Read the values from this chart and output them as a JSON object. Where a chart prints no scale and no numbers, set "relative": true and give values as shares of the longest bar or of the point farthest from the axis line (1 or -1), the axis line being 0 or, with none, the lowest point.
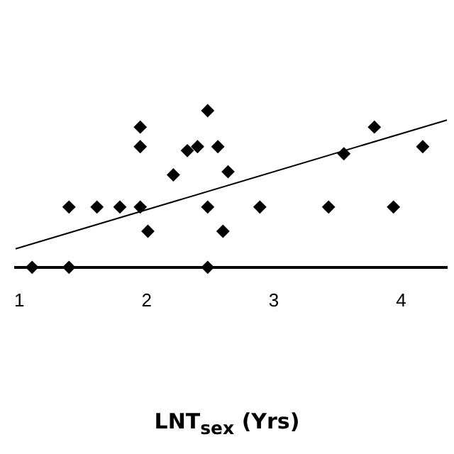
{
  "chart_data": {
    "type": "scatter",
    "xlabel": "LNT$_{sex}$ (Yrs)",
    "relative": true,
    "xlim": [
      0.97,
      4.36
    ],
    "xticks": [
      1,
      2,
      3,
      4
    ],
    "tick_labels": "x",
    "grid": false,
    "marker": "diamond",
    "series": [
      {
        "color": "#000000",
        "x": [
          1.1,
          1.39,
          2.48,
          1.39,
          1.61,
          1.79,
          1.95,
          1.95,
          1.95,
          2.01,
          2.21,
          2.32,
          2.4,
          2.48,
          2.48,
          2.56,
          2.64,
          2.6,
          2.89,
          3.43,
          3.55,
          3.79,
          3.94,
          4.17
        ],
        "values": [
          0,
          0,
          0,
          0.385,
          0.385,
          0.385,
          0.385,
          0.895,
          0.77,
          0.23,
          0.59,
          0.745,
          0.77,
          1,
          0.385,
          0.77,
          0.61,
          0.23,
          0.385,
          0.385,
          0.725,
          0.895,
          0.385,
          0.77
        ]
      },
      {
        "type": "line",
        "marker": "none",
        "color": "#000000",
        "x": [
          0.97,
          4.36
        ],
        "values": [
          0.118,
          0.94
        ]
      }
    ]
  }
}
